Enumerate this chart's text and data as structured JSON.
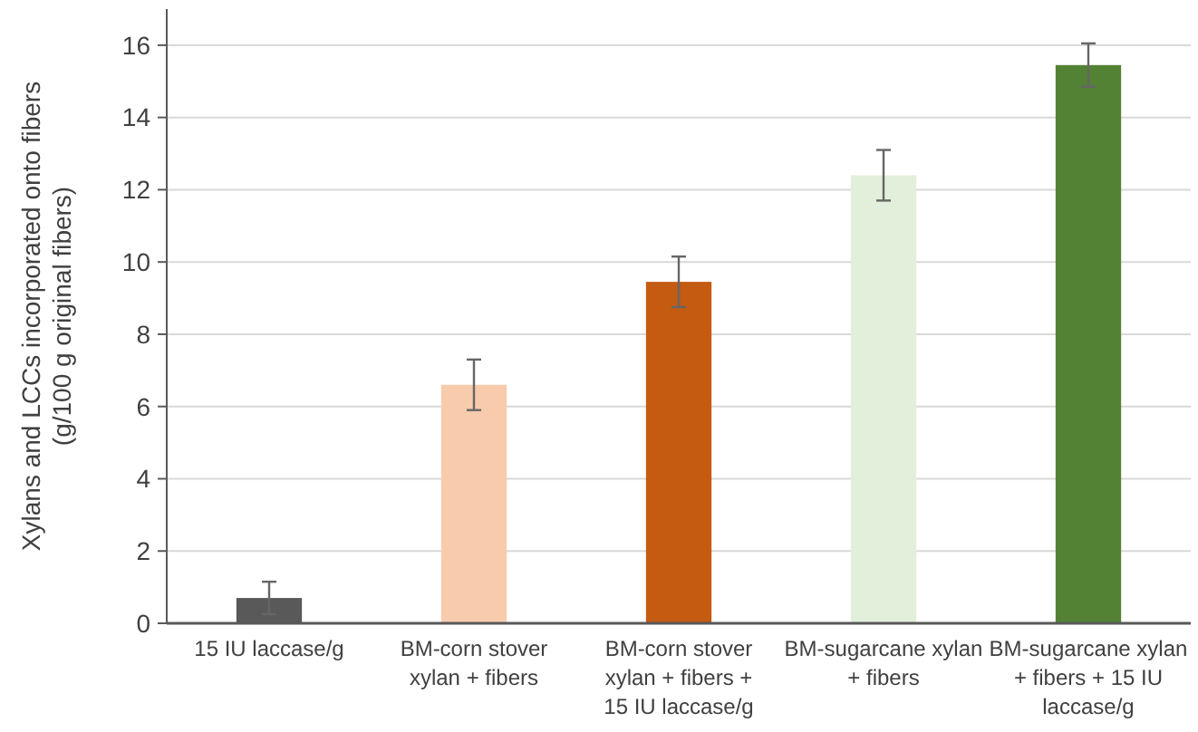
{
  "chart_data": {
    "type": "bar",
    "ylabel": "Xylans and LCCs incorporated onto fibers (g/100 g original fibers)",
    "categories": [
      "15 IU laccase/g",
      "BM-corn stover xylan + fibers",
      "BM-corn stover xylan + fibers + 15 IU laccase/g",
      "BM-sugarcane xylan + fibers",
      "BM-sugarcane xylan + fibers + 15 IU laccase/g"
    ],
    "values": [
      0.7,
      6.6,
      9.45,
      12.4,
      15.45
    ],
    "colors": [
      "#595959",
      "#f8cbad",
      "#c55a11",
      "#e2efda",
      "#548235"
    ],
    "errors": [
      0.45,
      0.7,
      0.7,
      0.7,
      0.6
    ],
    "ylim": [
      0,
      17
    ],
    "yticks": [
      0,
      2,
      4,
      6,
      8,
      10,
      12,
      14,
      16
    ],
    "grid": "y"
  }
}
